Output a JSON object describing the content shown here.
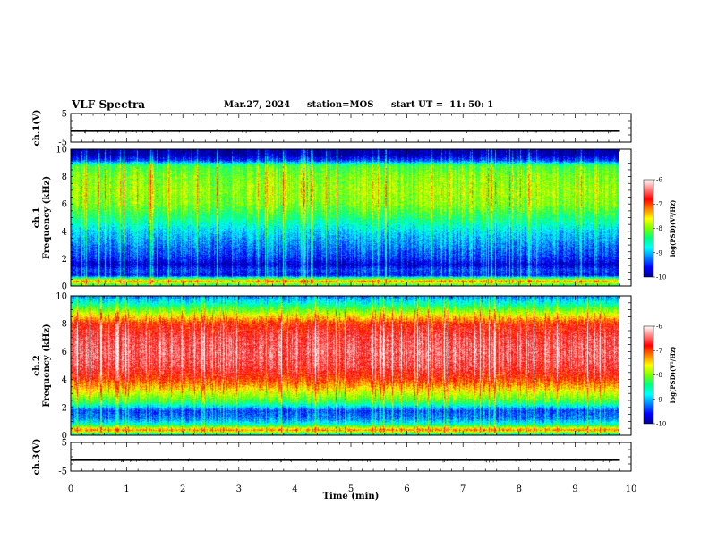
{
  "header": {
    "title": "VLF Spectra",
    "date": "Mar.27, 2024",
    "station": "station=MOS",
    "start": "start UT =  11: 50: 1"
  },
  "colors": {
    "spectrogram_scale": [
      "#00008f",
      "#0000ff",
      "#0080ff",
      "#00ffff",
      "#00ff80",
      "#80ff00",
      "#ffff00",
      "#ff8000",
      "#ff0000",
      "#ff8080",
      "#ffffff"
    ]
  },
  "chart_data": [
    {
      "type": "line",
      "name": "ch1-waveform",
      "ylabel": "ch.1(V)",
      "yticks": [
        "5",
        "-5"
      ],
      "ylim": [
        -5,
        5
      ],
      "xlim": [
        0,
        10
      ],
      "series": [
        {
          "values_flat": -1.2,
          "xrange": [
            0,
            9.8
          ]
        }
      ]
    },
    {
      "type": "heatmap",
      "name": "ch1-spectrogram",
      "ylabel": "ch.1\nFrequency (kHz)",
      "ylabel_line1": "ch.1",
      "ylabel_line2": "Frequency (kHz)",
      "yticks": [
        "0",
        "2",
        "4",
        "6",
        "8",
        "10"
      ],
      "ylim": [
        0,
        10
      ],
      "xlim": [
        0,
        10
      ],
      "data_xrange": [
        0,
        9.8
      ],
      "colorbar": {
        "label": "log(PSD)(V²/Hz)",
        "ticks": [
          "-6",
          "-7",
          "-8",
          "-9",
          "-10"
        ],
        "range": [
          -10,
          -6
        ]
      },
      "level_profile": [
        {
          "f": 0.0,
          "level": -8.6
        },
        {
          "f": 0.4,
          "level": -7.3
        },
        {
          "f": 0.8,
          "level": -9.6
        },
        {
          "f": 1.2,
          "level": -9.4
        },
        {
          "f": 1.6,
          "level": -9.8
        },
        {
          "f": 2.0,
          "level": -9.5
        },
        {
          "f": 3.0,
          "level": -9.2
        },
        {
          "f": 4.0,
          "level": -8.9
        },
        {
          "f": 5.0,
          "level": -8.4
        },
        {
          "f": 6.0,
          "level": -8.0
        },
        {
          "f": 7.0,
          "level": -7.9
        },
        {
          "f": 8.0,
          "level": -8.0
        },
        {
          "f": 8.8,
          "level": -8.2
        },
        {
          "f": 9.2,
          "level": -9.4
        },
        {
          "f": 9.6,
          "level": -9.9
        },
        {
          "f": 10.0,
          "level": -10.0
        }
      ]
    },
    {
      "type": "heatmap",
      "name": "ch2-spectrogram",
      "ylabel": "ch.2\nFrequency (kHz)",
      "ylabel_line1": "ch.2",
      "ylabel_line2": "Frequency (kHz)",
      "yticks": [
        "0",
        "2",
        "4",
        "6",
        "8",
        "10"
      ],
      "ylim": [
        0,
        10
      ],
      "xlim": [
        0,
        10
      ],
      "data_xrange": [
        0,
        9.8
      ],
      "colorbar": {
        "label": "log(PSD)(V²/Hz)",
        "ticks": [
          "-6",
          "-7",
          "-8",
          "-9",
          "-10"
        ],
        "range": [
          -10,
          -6
        ]
      },
      "level_profile": [
        {
          "f": 0.0,
          "level": -9.0
        },
        {
          "f": 0.4,
          "level": -7.2
        },
        {
          "f": 0.8,
          "level": -8.6
        },
        {
          "f": 1.2,
          "level": -9.2
        },
        {
          "f": 1.8,
          "level": -9.4
        },
        {
          "f": 2.4,
          "level": -8.3
        },
        {
          "f": 3.0,
          "level": -7.8
        },
        {
          "f": 3.6,
          "level": -7.3
        },
        {
          "f": 4.2,
          "level": -6.9
        },
        {
          "f": 5.0,
          "level": -6.6
        },
        {
          "f": 6.0,
          "level": -6.5
        },
        {
          "f": 7.0,
          "level": -6.6
        },
        {
          "f": 8.0,
          "level": -6.9
        },
        {
          "f": 8.6,
          "level": -7.6
        },
        {
          "f": 9.2,
          "level": -8.3
        },
        {
          "f": 9.6,
          "level": -8.8
        },
        {
          "f": 10.0,
          "level": -9.2
        }
      ]
    },
    {
      "type": "line",
      "name": "ch3-waveform",
      "ylabel": "ch.3(V)",
      "yticks": [
        "5",
        "-5"
      ],
      "ylim": [
        -5,
        5
      ],
      "xlim": [
        0,
        10
      ],
      "xlabel": "Time (min)",
      "xticks": [
        "0",
        "1",
        "2",
        "3",
        "4",
        "5",
        "6",
        "7",
        "8",
        "9",
        "10"
      ],
      "series": [
        {
          "values_flat": -1.2,
          "xrange": [
            0,
            9.8
          ]
        }
      ]
    }
  ]
}
